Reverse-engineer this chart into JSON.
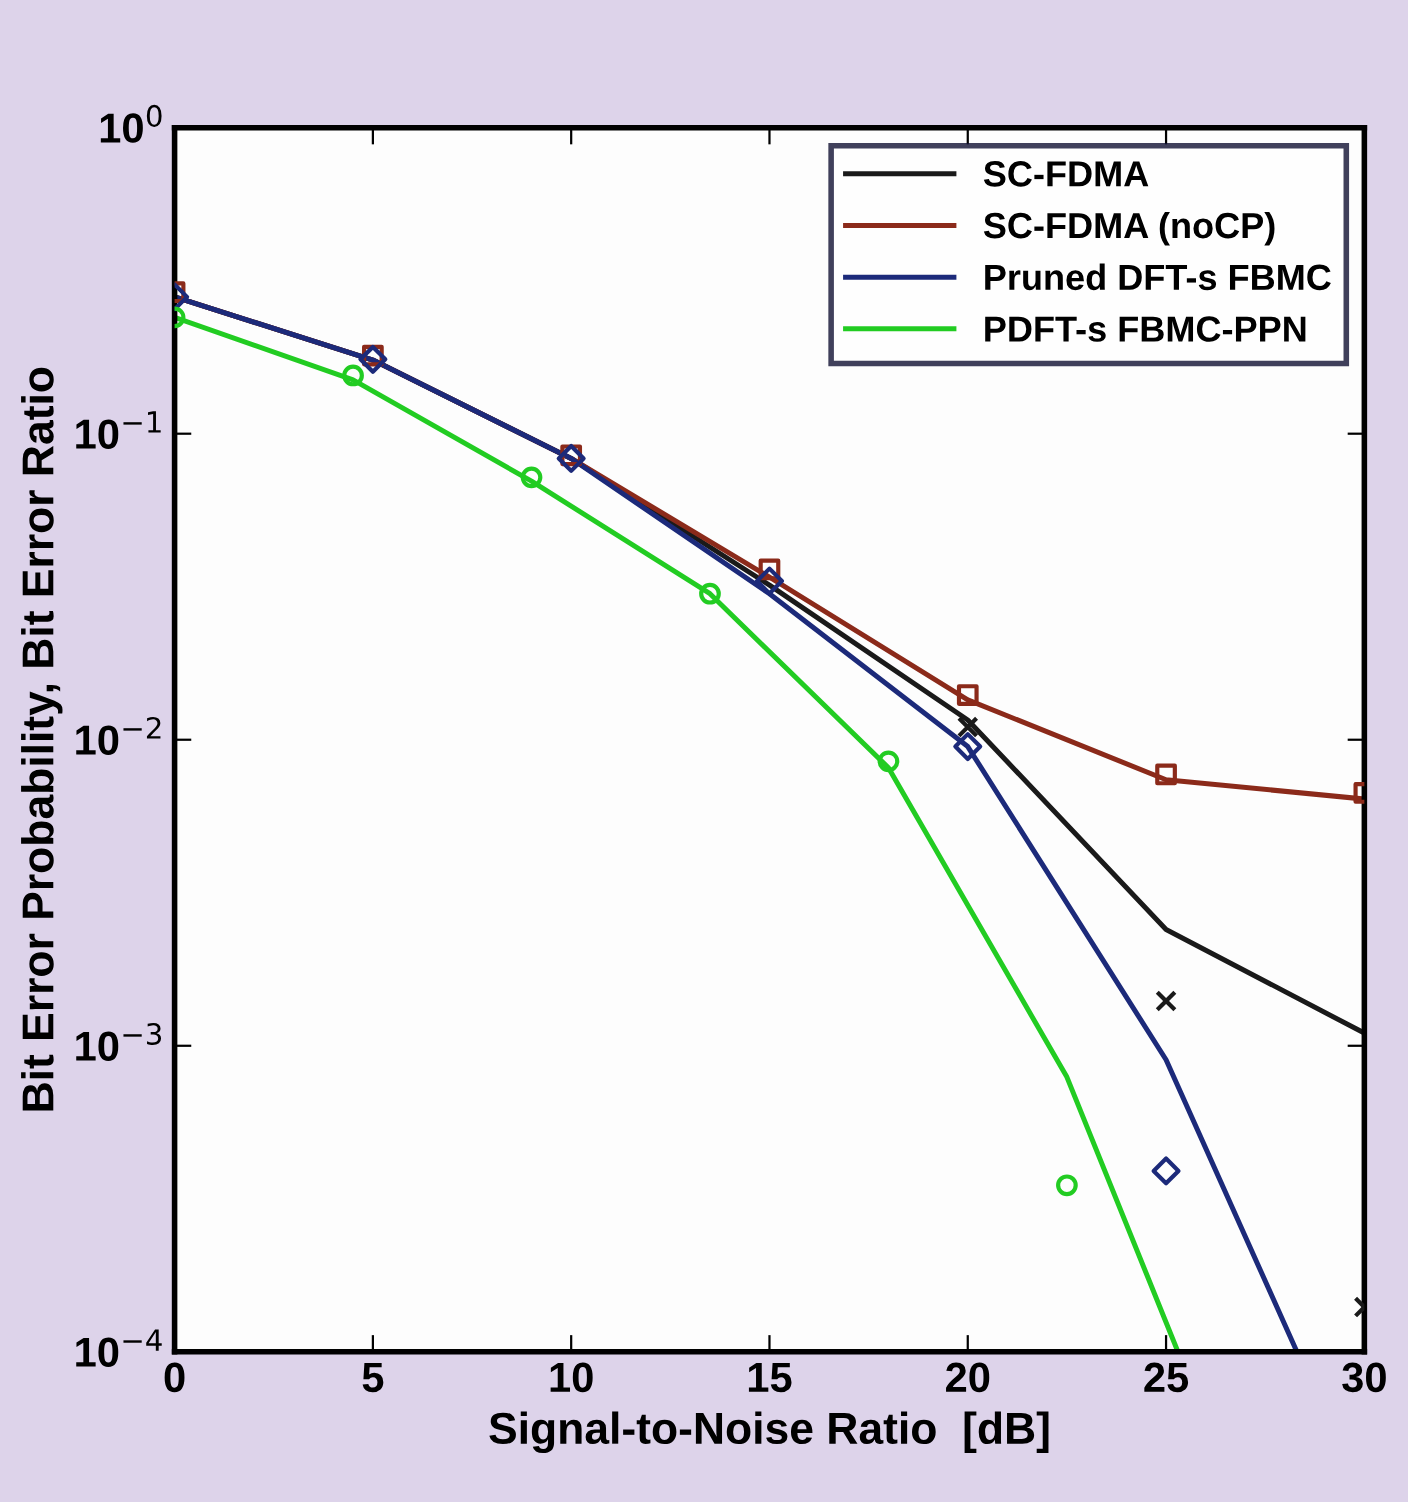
{
  "chart_data": {
    "type": "line",
    "xlabel": "Signal-to-Noise Ratio  [dB]",
    "ylabel": "Bit Error Probability, Bit Error Ratio",
    "log": "y",
    "grid": false,
    "legend": "top right",
    "line_style": "solid",
    "xlim": [
      0,
      30
    ],
    "xticks": [
      0,
      5,
      10,
      15,
      20,
      25,
      30
    ],
    "ylim": [
      0.0001,
      1
    ],
    "yticks": [
      {
        "value": 1,
        "label": "10$^{0}$"
      },
      {
        "value": 0.1,
        "label": "10$^{−1}$"
      },
      {
        "value": 0.01,
        "label": "10$^{−2}$"
      },
      {
        "value": 0.001,
        "label": "10$^{−3}$"
      },
      {
        "value": 0.0001,
        "label": "10$^{−4}$"
      }
    ],
    "series": [
      {
        "name": "SC-FDMA",
        "color": "#1a1a1a",
        "marker": "none",
        "x": [
          0,
          5,
          10,
          15,
          20,
          25,
          30
        ],
        "values": [
          0.28,
          0.174,
          0.083,
          0.032,
          0.0116,
          0.0024,
          0.0011
        ]
      },
      {
        "name": "SC-FDMA (noCP)",
        "color": "#8b2a1a",
        "marker": "none",
        "x": [
          0,
          5,
          10,
          15,
          20,
          25,
          30
        ],
        "values": [
          0.28,
          0.174,
          0.083,
          0.034,
          0.0135,
          0.0074,
          0.0064
        ]
      },
      {
        "name": "Pruned DFT-s FBMC",
        "color": "#1c2a7a",
        "marker": "none",
        "x": [
          0,
          5,
          10,
          15,
          20,
          25,
          28.3
        ],
        "values": [
          0.28,
          0.174,
          0.083,
          0.03,
          0.0095,
          0.0009,
          0.0001
        ]
      },
      {
        "name": "PDFT-s FBMC-PPN",
        "color": "#22cc22",
        "marker": "none",
        "x": [
          0,
          4.5,
          9,
          13.5,
          18,
          22.5,
          25.3
        ],
        "values": [
          0.24,
          0.15,
          0.07,
          0.03,
          0.0081,
          0.00079,
          0.0001
        ]
      },
      {
        "type": "scatter",
        "color": "#1a1a1a",
        "marker": "cross",
        "x": [
          20,
          25,
          30
        ],
        "values": [
          0.011,
          0.0014,
          0.00014
        ]
      },
      {
        "type": "scatter",
        "color": "#8b2a1a",
        "marker": "square",
        "x": [
          0,
          5,
          10,
          15,
          20,
          25,
          30
        ],
        "values": [
          0.29,
          0.18,
          0.085,
          0.036,
          0.014,
          0.0077,
          0.0067
        ]
      },
      {
        "type": "scatter",
        "color": "#1c2a7a",
        "marker": "diamond",
        "x": [
          0,
          5,
          10,
          15,
          20,
          25
        ],
        "values": [
          0.28,
          0.175,
          0.083,
          0.033,
          0.0095,
          0.00039
        ]
      },
      {
        "type": "scatter",
        "color": "#22cc22",
        "marker": "circle",
        "x": [
          0,
          4.5,
          9,
          13.5,
          18,
          22.5
        ],
        "values": [
          0.24,
          0.155,
          0.072,
          0.03,
          0.0085,
          0.00035
        ]
      }
    ]
  }
}
